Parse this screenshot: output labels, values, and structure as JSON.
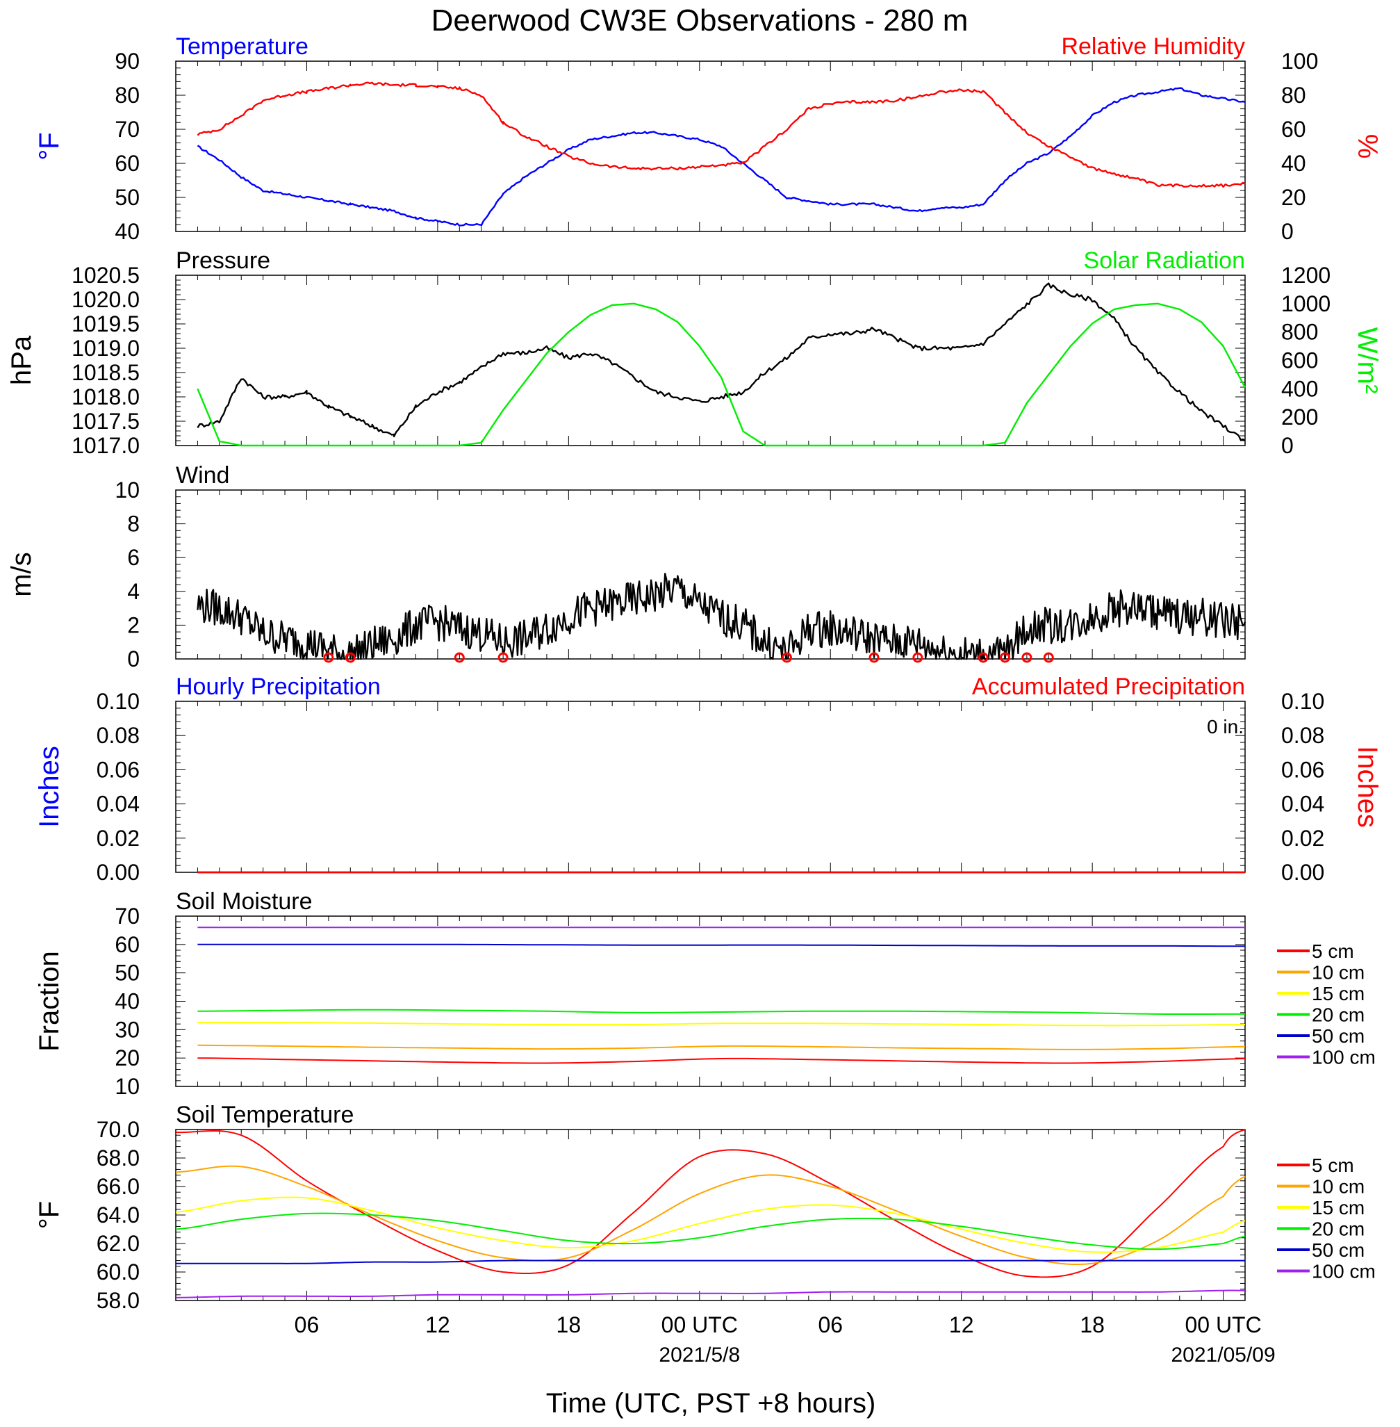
{
  "title": "Deerwood CW3E Observations - 280 m",
  "x_axis": {
    "label": "Time (UTC, PST +8 hours)",
    "tick_labels": [
      "06",
      "12",
      "18",
      "00 UTC",
      "06",
      "12",
      "18",
      "00 UTC"
    ],
    "date_labels": [
      "2021/5/8",
      "2021/05/09"
    ]
  },
  "colors": {
    "blue": "#0000ff",
    "red": "#ff0000",
    "green": "#00ee00",
    "black": "#000000",
    "orange": "#ffa500",
    "yellow": "#ffff00",
    "purple": "#a020f0",
    "navy": "#0000cd"
  },
  "chart_data": [
    {
      "type": "line",
      "title_left": "Temperature",
      "title_right": "Relative Humidity",
      "ylabel_left": "°F",
      "ylabel_right": "%",
      "ylim_left": [
        40,
        90
      ],
      "ylim_right": [
        0,
        100
      ],
      "yticks_left": [
        "40",
        "50",
        "60",
        "70",
        "80",
        "90"
      ],
      "yticks_right": [
        "0",
        "20",
        "40",
        "60",
        "80",
        "100"
      ],
      "x_hours": [
        1,
        2,
        3,
        4,
        5,
        6,
        7,
        8,
        9,
        10,
        11,
        12,
        13,
        14,
        15,
        16,
        17,
        18,
        19,
        20,
        21,
        22,
        23,
        24,
        25,
        26,
        27,
        28,
        29,
        30,
        31,
        32,
        33,
        34,
        35,
        36,
        37,
        38,
        39,
        40,
        41,
        42,
        43,
        44,
        45,
        46,
        47,
        48,
        49
      ],
      "series": [
        {
          "name": "Temperature",
          "axis": "left",
          "color": "blue",
          "values": [
            65,
            61,
            56,
            52,
            51,
            50,
            49,
            48,
            47,
            46,
            44,
            43,
            42,
            42,
            51,
            56,
            60,
            64,
            67,
            68,
            69,
            69,
            68,
            67,
            65,
            60,
            55,
            50,
            49,
            48,
            48,
            48,
            47,
            46,
            47,
            47,
            48,
            55,
            60,
            63,
            68,
            74,
            78,
            80,
            81,
            82,
            80,
            79,
            78
          ]
        },
        {
          "name": "Relative Humidity",
          "axis": "right",
          "color": "red",
          "values": [
            57,
            60,
            68,
            77,
            80,
            82,
            84,
            86,
            87,
            86,
            86,
            85,
            84,
            80,
            64,
            56,
            50,
            44,
            40,
            38,
            37,
            37,
            37,
            38,
            39,
            40,
            50,
            60,
            72,
            75,
            76,
            76,
            77,
            79,
            82,
            83,
            82,
            70,
            58,
            50,
            44,
            37,
            34,
            31,
            27,
            27,
            27,
            27,
            28
          ]
        }
      ]
    },
    {
      "type": "line",
      "title_left": "Pressure",
      "title_right": "Solar Radiation",
      "ylabel_left": "hPa",
      "ylabel_right": "W/m²",
      "ylim_left": [
        1017.0,
        1020.5
      ],
      "ylim_right": [
        0,
        1200
      ],
      "yticks_left": [
        "1017.0",
        "1017.5",
        "1018.0",
        "1018.5",
        "1019.0",
        "1019.5",
        "1020.0",
        "1020.5"
      ],
      "yticks_right": [
        "0",
        "200",
        "400",
        "600",
        "800",
        "1000",
        "1200"
      ],
      "x_hours": [
        1,
        2,
        3,
        4,
        5,
        6,
        7,
        8,
        9,
        10,
        11,
        12,
        13,
        14,
        15,
        16,
        17,
        18,
        19,
        20,
        21,
        22,
        23,
        24,
        25,
        26,
        27,
        28,
        29,
        30,
        31,
        32,
        33,
        34,
        35,
        36,
        37,
        38,
        39,
        40,
        41,
        42,
        43,
        44,
        45,
        46,
        47,
        48,
        49
      ],
      "series": [
        {
          "name": "Pressure",
          "axis": "left",
          "color": "black",
          "values": [
            1017.4,
            1017.5,
            1018.4,
            1018.0,
            1018.0,
            1018.1,
            1017.8,
            1017.6,
            1017.4,
            1017.2,
            1017.8,
            1018.1,
            1018.3,
            1018.6,
            1018.9,
            1018.9,
            1019.0,
            1018.8,
            1018.9,
            1018.7,
            1018.4,
            1018.1,
            1018.0,
            1017.9,
            1018.0,
            1018.1,
            1018.5,
            1018.8,
            1019.2,
            1019.3,
            1019.3,
            1019.4,
            1019.2,
            1019.0,
            1019.0,
            1019.0,
            1019.1,
            1019.5,
            1019.9,
            1020.3,
            1020.1,
            1020.0,
            1019.6,
            1019.0,
            1018.5,
            1018.1,
            1017.7,
            1017.4,
            1017.1
          ]
        },
        {
          "name": "Solar Radiation",
          "axis": "right",
          "color": "green",
          "values": [
            400,
            30,
            0,
            0,
            0,
            0,
            0,
            0,
            0,
            0,
            0,
            0,
            0,
            20,
            250,
            450,
            650,
            800,
            920,
            990,
            1000,
            960,
            870,
            700,
            480,
            100,
            0,
            0,
            0,
            0,
            0,
            0,
            0,
            0,
            0,
            0,
            0,
            20,
            300,
            500,
            700,
            860,
            960,
            990,
            1000,
            960,
            870,
            700,
            410
          ]
        }
      ]
    },
    {
      "type": "line",
      "title_left": "Wind",
      "ylabel_left": "m/s",
      "ylim_left": [
        0,
        10
      ],
      "yticks_left": [
        "0",
        "2",
        "4",
        "6",
        "8",
        "10"
      ],
      "x_hours": [
        1,
        2,
        3,
        4,
        5,
        6,
        7,
        8,
        9,
        10,
        11,
        12,
        13,
        14,
        15,
        16,
        17,
        18,
        19,
        20,
        21,
        22,
        23,
        24,
        25,
        26,
        27,
        28,
        29,
        30,
        31,
        32,
        33,
        34,
        35,
        36,
        37,
        38,
        39,
        40,
        41,
        42,
        43,
        44,
        45,
        46,
        47,
        48,
        49
      ],
      "series": [
        {
          "name": "Wind",
          "axis": "left",
          "color": "black",
          "values": [
            3.2,
            3.0,
            2.5,
            1.5,
            1.2,
            1.0,
            0.5,
            0.2,
            0.8,
            1.2,
            2.0,
            2.2,
            1.8,
            1.5,
            1.0,
            1.2,
            1.8,
            2.5,
            3.0,
            3.2,
            3.5,
            3.8,
            4.2,
            3.2,
            2.5,
            2.0,
            1.0,
            0.3,
            1.8,
            1.8,
            1.5,
            1.2,
            1.0,
            1.0,
            0.5,
            0.3,
            0.2,
            0.3,
            1.8,
            2.0,
            2.0,
            2.5,
            3.0,
            3.0,
            2.8,
            2.5,
            2.5,
            2.3,
            2.2
          ]
        }
      ],
      "calm_circles_hours": [
        7,
        8,
        13,
        15,
        28,
        32,
        34,
        37,
        38,
        39,
        40
      ]
    },
    {
      "type": "line",
      "title_left": "Hourly Precipitation",
      "title_right": "Accumulated Precipitation",
      "annotation": "0 in.",
      "ylabel_left": "Inches",
      "ylabel_right": "Inches",
      "ylim_left": [
        0,
        0.1
      ],
      "ylim_right": [
        0,
        0.1
      ],
      "yticks_left": [
        "0.00",
        "0.02",
        "0.04",
        "0.06",
        "0.08",
        "0.10"
      ],
      "yticks_right": [
        "0.00",
        "0.02",
        "0.04",
        "0.06",
        "0.08",
        "0.10"
      ],
      "x_hours": [
        1,
        49
      ],
      "series": [
        {
          "name": "Hourly Precipitation",
          "axis": "left",
          "color": "blue",
          "values": [
            0,
            0
          ]
        },
        {
          "name": "Accumulated Precipitation",
          "axis": "right",
          "color": "red",
          "values": [
            0,
            0
          ]
        }
      ]
    },
    {
      "type": "line",
      "title_left": "Soil Moisture",
      "ylabel_left": "Fraction",
      "ylim_left": [
        10,
        70
      ],
      "yticks_left": [
        "10",
        "20",
        "30",
        "40",
        "50",
        "60",
        "70"
      ],
      "x_hours": [
        1,
        5,
        9,
        13,
        17,
        21,
        25,
        29,
        33,
        37,
        41,
        45,
        49
      ],
      "series": [
        {
          "name": "5 cm",
          "color": "red",
          "values": [
            20,
            19.5,
            19,
            18.5,
            18.2,
            18.8,
            19.8,
            19.5,
            19,
            18.5,
            18.2,
            18.8,
            19.8
          ]
        },
        {
          "name": "10 cm",
          "color": "orange",
          "values": [
            24.5,
            24.2,
            23.8,
            23.5,
            23.2,
            23.5,
            24.2,
            24,
            23.6,
            23.3,
            23,
            23.3,
            24
          ]
        },
        {
          "name": "15 cm",
          "color": "yellow",
          "values": [
            32.5,
            32.5,
            32.3,
            32,
            31.8,
            31.8,
            32.2,
            32.2,
            32,
            31.8,
            31.5,
            31.5,
            31.8
          ]
        },
        {
          "name": "20 cm",
          "color": "green",
          "values": [
            36.5,
            36.8,
            37,
            36.8,
            36.5,
            36,
            36.2,
            36.5,
            36.5,
            36.3,
            36,
            35.5,
            35.5
          ]
        },
        {
          "name": "50 cm",
          "color": "navy",
          "values": [
            60,
            60,
            60,
            60,
            59.9,
            59.8,
            59.8,
            59.8,
            59.7,
            59.6,
            59.5,
            59.5,
            59.4
          ]
        },
        {
          "name": "100 cm",
          "color": "purple",
          "values": [
            66,
            66,
            66,
            66,
            66,
            66,
            66,
            66,
            66,
            66,
            66,
            66,
            66
          ]
        }
      ]
    },
    {
      "type": "line",
      "title_left": "Soil Temperature",
      "ylabel_left": "°F",
      "ylim_left": [
        58,
        70
      ],
      "yticks_left": [
        "58.0",
        "60.0",
        "62.0",
        "64.0",
        "66.0",
        "68.0",
        "70.0"
      ],
      "x_hours": [
        0,
        3,
        6,
        9,
        12,
        15,
        18,
        21,
        24,
        27,
        30,
        33,
        36,
        39,
        42,
        45,
        48,
        49
      ],
      "series": [
        {
          "name": "5 cm",
          "color": "red",
          "values": [
            69.8,
            69.6,
            66.4,
            63.8,
            61.5,
            60,
            60.5,
            64.2,
            68.1,
            68.3,
            66.2,
            63.6,
            61.2,
            59.7,
            60.4,
            64.5,
            68.8,
            70
          ]
        },
        {
          "name": "10 cm",
          "color": "orange",
          "values": [
            67,
            67.4,
            66,
            64,
            62.2,
            61,
            61,
            63,
            65.5,
            66.8,
            66,
            64.3,
            62.5,
            61,
            60.6,
            62.2,
            65.3,
            66.7
          ]
        },
        {
          "name": "15 cm",
          "color": "yellow",
          "values": [
            64.2,
            65,
            65.2,
            64.3,
            63.1,
            62.2,
            61.7,
            62.2,
            63.4,
            64.4,
            64.7,
            64.1,
            63,
            62,
            61.4,
            61.7,
            62.8,
            63.6
          ]
        },
        {
          "name": "20 cm",
          "color": "green",
          "values": [
            63,
            63.7,
            64.1,
            64,
            63.6,
            62.9,
            62.2,
            62,
            62.4,
            63.2,
            63.7,
            63.7,
            63.2,
            62.5,
            61.9,
            61.6,
            62,
            62.5
          ]
        },
        {
          "name": "50 cm",
          "color": "navy",
          "values": [
            60.6,
            60.6,
            60.6,
            60.7,
            60.7,
            60.8,
            60.8,
            60.8,
            60.8,
            60.8,
            60.8,
            60.8,
            60.8,
            60.8,
            60.8,
            60.8,
            60.8,
            60.8
          ]
        },
        {
          "name": "100 cm",
          "color": "purple",
          "values": [
            58.2,
            58.3,
            58.3,
            58.3,
            58.4,
            58.4,
            58.4,
            58.5,
            58.5,
            58.5,
            58.6,
            58.6,
            58.6,
            58.6,
            58.6,
            58.6,
            58.7,
            58.7
          ]
        }
      ]
    }
  ],
  "legend": {
    "entries": [
      {
        "label": "5 cm",
        "color": "red"
      },
      {
        "label": "10 cm",
        "color": "orange"
      },
      {
        "label": "15 cm",
        "color": "yellow"
      },
      {
        "label": "20 cm",
        "color": "green"
      },
      {
        "label": "50 cm",
        "color": "navy"
      },
      {
        "label": "100 cm",
        "color": "purple"
      }
    ]
  }
}
